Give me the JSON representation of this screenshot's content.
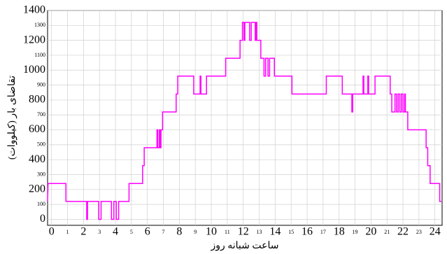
{
  "chart_data": {
    "type": "line",
    "x_label": "ساعت شبانه روز",
    "y_label": "تقاضای بار (کیلووات)",
    "xlim": [
      -0.25,
      24.45
    ],
    "ylim": [
      -40,
      1400
    ],
    "xticks": [
      0,
      1,
      2,
      3,
      4,
      5,
      6,
      7,
      8,
      9,
      10,
      11,
      12,
      13,
      14,
      15,
      16,
      17,
      18,
      19,
      20,
      21,
      22,
      23,
      24
    ],
    "yticks": [
      0,
      100,
      200,
      300,
      400,
      500,
      600,
      700,
      800,
      900,
      1000,
      1100,
      1200,
      1300,
      1400
    ],
    "grid": true,
    "series": [
      {
        "color": "#ff00ff",
        "x": [
          -0.25,
          -0.22,
          0.9,
          0.9,
          2.2,
          2.2,
          2.25,
          2.25,
          2.95,
          2.95,
          3.1,
          3.1,
          3.75,
          3.75,
          3.9,
          3.9,
          4.05,
          4.05,
          4.2,
          4.2,
          4.85,
          4.85,
          5.7,
          5.7,
          5.8,
          5.8,
          6.6,
          6.6,
          6.65,
          6.65,
          6.75,
          6.75,
          6.8,
          6.8,
          6.85,
          6.85,
          6.95,
          6.95,
          7.8,
          7.8,
          7.9,
          7.9,
          8.9,
          8.9,
          9.3,
          9.3,
          9.35,
          9.35,
          9.7,
          9.7,
          10.9,
          10.9,
          11.8,
          11.8,
          11.95,
          11.95,
          12.05,
          12.05,
          12.1,
          12.1,
          12.4,
          12.4,
          12.5,
          12.5,
          12.75,
          12.75,
          12.8,
          12.8,
          12.85,
          12.85,
          13.1,
          13.1,
          13.3,
          13.3,
          13.4,
          13.4,
          13.55,
          13.55,
          13.65,
          13.65,
          13.95,
          13.95,
          15.05,
          15.05,
          17.2,
          17.2,
          18.2,
          18.2,
          18.8,
          18.8,
          18.85,
          18.85,
          19.5,
          19.5,
          19.55,
          19.55,
          19.8,
          19.8,
          19.85,
          19.85,
          20.25,
          20.25,
          21.2,
          21.2,
          21.3,
          21.3,
          21.5,
          21.5,
          21.6,
          21.6,
          21.7,
          21.7,
          21.8,
          21.8,
          21.9,
          21.9,
          22.0,
          22.0,
          22.1,
          22.1,
          22.15,
          22.15,
          22.3,
          22.3,
          23.45,
          23.45,
          23.55,
          23.55,
          23.7,
          23.7,
          24.3,
          24.3,
          24.4
        ],
        "values": [
          120,
          240,
          240,
          120,
          120,
          0,
          0,
          120,
          120,
          0,
          0,
          120,
          120,
          0,
          0,
          120,
          120,
          0,
          0,
          120,
          120,
          240,
          240,
          360,
          360,
          480,
          480,
          600,
          600,
          480,
          480,
          600,
          600,
          480,
          480,
          600,
          600,
          720,
          720,
          840,
          840,
          960,
          960,
          840,
          840,
          960,
          960,
          840,
          840,
          960,
          960,
          1080,
          1080,
          1200,
          1200,
          1320,
          1320,
          1200,
          1200,
          1320,
          1320,
          1200,
          1200,
          1320,
          1320,
          1200,
          1200,
          1320,
          1320,
          1200,
          1200,
          1080,
          1080,
          960,
          960,
          1080,
          1080,
          960,
          960,
          1080,
          1080,
          960,
          960,
          840,
          840,
          960,
          960,
          840,
          840,
          720,
          720,
          840,
          840,
          960,
          960,
          840,
          840,
          960,
          960,
          840,
          840,
          960,
          960,
          840,
          840,
          720,
          720,
          840,
          840,
          720,
          720,
          840,
          840,
          720,
          720,
          840,
          840,
          720,
          720,
          840,
          840,
          720,
          720,
          600,
          600,
          480,
          480,
          360,
          360,
          240,
          240,
          120,
          120
        ]
      }
    ]
  }
}
